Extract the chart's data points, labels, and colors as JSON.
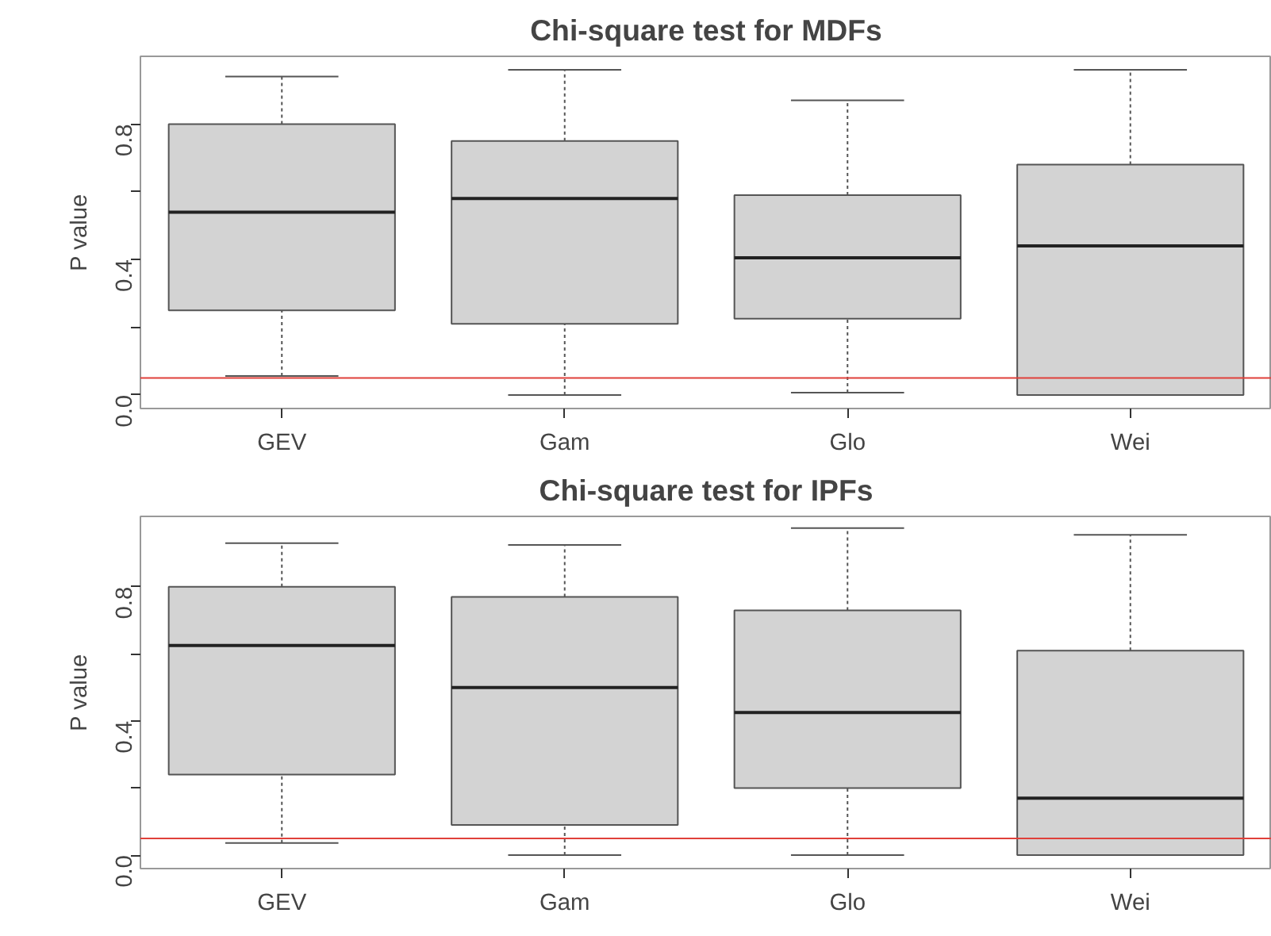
{
  "chart_data": [
    {
      "type": "box",
      "title": "Chi-square test for MDFs",
      "ylabel": "P value",
      "categories": [
        "GEV",
        "Gam",
        "Glo",
        "Wei"
      ],
      "color": "#d3d3d3",
      "boxes": [
        {
          "low": 0.056,
          "q1": 0.25,
          "median": 0.54,
          "q3": 0.8,
          "high": 0.94
        },
        {
          "low": 0.0,
          "q1": 0.21,
          "median": 0.58,
          "q3": 0.75,
          "high": 0.96
        },
        {
          "low": 0.007,
          "q1": 0.225,
          "median": 0.405,
          "q3": 0.59,
          "high": 0.87
        },
        {
          "low": 0.0,
          "q1": 0.0,
          "median": 0.44,
          "q3": 0.68,
          "high": 0.96
        }
      ],
      "ylim": [
        -0.04,
        1.0
      ],
      "yticks": [
        {
          "value": 0,
          "label": "0.0"
        },
        {
          "value": 0.2,
          "label": null
        },
        {
          "value": 0.4,
          "label": "0.4"
        },
        {
          "value": 0.6,
          "label": null
        },
        {
          "value": 0.8,
          "label": "0.8"
        }
      ],
      "ref_lines": [
        {
          "axis": "y",
          "value": 0.05,
          "label": null,
          "color": "#e0403a"
        }
      ],
      "grid": false
    },
    {
      "type": "box",
      "title": "Chi-square test for IPFs",
      "ylabel": "P value",
      "categories": [
        "GEV",
        "Gam",
        "Glo",
        "Wei"
      ],
      "color": "#d3d3d3",
      "boxes": [
        {
          "low": 0.036,
          "q1": 0.24,
          "median": 0.625,
          "q3": 0.8,
          "high": 0.93
        },
        {
          "low": 0.0,
          "q1": 0.09,
          "median": 0.5,
          "q3": 0.77,
          "high": 0.925
        },
        {
          "low": 0.0,
          "q1": 0.2,
          "median": 0.425,
          "q3": 0.73,
          "high": 0.975
        },
        {
          "low": 0.0,
          "q1": 0.0,
          "median": 0.17,
          "q3": 0.61,
          "high": 0.955
        }
      ],
      "ylim": [
        -0.04,
        1.01
      ],
      "yticks": [
        {
          "value": 0,
          "label": "0.0"
        },
        {
          "value": 0.2,
          "label": null
        },
        {
          "value": 0.4,
          "label": "0.4"
        },
        {
          "value": 0.6,
          "label": null
        },
        {
          "value": 0.8,
          "label": "0.8"
        }
      ],
      "ref_lines": [
        {
          "axis": "y",
          "value": 0.05,
          "label": null,
          "color": "#e0403a"
        }
      ],
      "grid": false
    }
  ]
}
